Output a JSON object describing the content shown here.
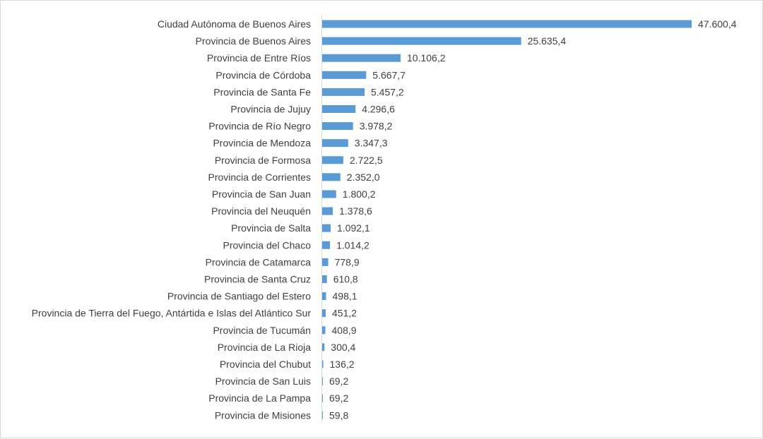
{
  "chart_data": {
    "type": "bar",
    "orientation": "horizontal",
    "title": "",
    "xlabel": "",
    "ylabel": "",
    "grid": false,
    "legend": "none",
    "bar_color": "#5b9bd5",
    "xlim": [
      0,
      52000
    ],
    "categories": [
      "Ciudad Autónoma de Buenos Aires",
      "Provincia de Buenos Aires",
      "Provincia de Entre Ríos",
      "Provincia de Córdoba",
      "Provincia de Santa Fe",
      "Provincia de Jujuy",
      "Provincia de Río Negro",
      "Provincia de Mendoza",
      "Provincia de Formosa",
      "Provincia de Corrientes",
      "Provincia de San Juan",
      "Provincia del Neuquén",
      "Provincia de Salta",
      "Provincia del Chaco",
      "Provincia de Catamarca",
      "Provincia de Santa Cruz",
      "Provincia de Santiago del Estero",
      "Provincia de Tierra del Fuego, Antártida e Islas del Atlántico Sur",
      "Provincia de Tucumán",
      "Provincia de La Rioja",
      "Provincia del Chubut",
      "Provincia de San Luis",
      "Provincia de La Pampa",
      "Provincia de Misiones"
    ],
    "values": [
      47600.4,
      25635.4,
      10106.2,
      5667.7,
      5457.2,
      4296.6,
      3978.2,
      3347.3,
      2722.5,
      2352.0,
      1800.2,
      1378.6,
      1092.1,
      1014.2,
      778.9,
      610.8,
      498.1,
      451.2,
      408.9,
      300.4,
      136.2,
      69.2,
      69.2,
      59.8
    ],
    "value_labels": [
      "47.600,4",
      "25.635,4",
      "10.106,2",
      "5.667,7",
      "5.457,2",
      "4.296,6",
      "3.978,2",
      "3.347,3",
      "2.722,5",
      "2.352,0",
      "1.800,2",
      "1.378,6",
      "1.092,1",
      "1.014,2",
      "778,9",
      "610,8",
      "498,1",
      "451,2",
      "408,9",
      "300,4",
      "136,2",
      "69,2",
      "69,2",
      "59,8"
    ]
  }
}
